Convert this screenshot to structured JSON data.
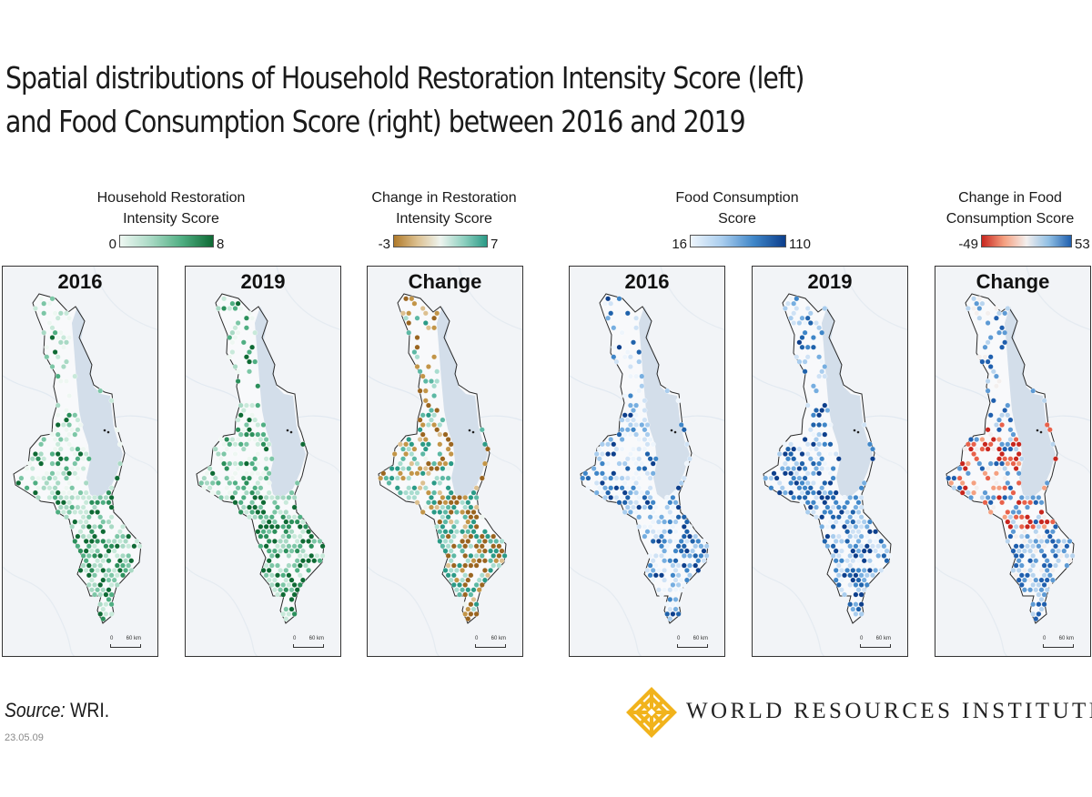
{
  "title_lines": [
    "Spatial distributions of Household Restoration Intensity Score (left)",
    "and Food Consumption Score (right) between 2016 and 2019"
  ],
  "legends": [
    {
      "title_lines": [
        "Household Restoration",
        "Intensity Score"
      ],
      "min": "0",
      "max": "8",
      "colors": [
        "#eef7f2",
        "#a8d9c4",
        "#4fae82",
        "#0e6a34"
      ]
    },
    {
      "title_lines": [
        "Change in Restoration",
        "Intensity Score"
      ],
      "min": "-3",
      "max": "7",
      "colors": [
        "#b07a2a",
        "#dcc090",
        "#eef4ef",
        "#8fd0c0",
        "#2a9a86"
      ]
    },
    {
      "title_lines": [
        "Food Consumption",
        "Score"
      ],
      "min": "16",
      "max": "110",
      "colors": [
        "#eef5fc",
        "#a9cdee",
        "#3f86c8",
        "#0d3f8c"
      ]
    },
    {
      "title_lines": [
        "Change in Food",
        "Consumption Score"
      ],
      "min": "-49",
      "max": "53",
      "colors": [
        "#c8261e",
        "#f4a080",
        "#f3efee",
        "#90bfe4",
        "#1f5fae"
      ]
    }
  ],
  "panels": [
    {
      "label": "2016",
      "palette": "rest",
      "seed": 11
    },
    {
      "label": "2019",
      "palette": "rest",
      "seed": 23
    },
    {
      "label": "Change",
      "palette": "restchange",
      "seed": 37
    },
    {
      "label": "2016",
      "palette": "food",
      "seed": 41
    },
    {
      "label": "2019",
      "palette": "food",
      "seed": 53
    },
    {
      "label": "Change",
      "palette": "foodchange",
      "seed": 67
    }
  ],
  "scale_bar": {
    "ticks": [
      "0",
      "60 km"
    ]
  },
  "source_label": "Source:",
  "source_text": " WRI.",
  "date": "23.05.09",
  "logo": {
    "name": "WORLD RESOURCES INSTITUTE",
    "icon": "wri-knot-icon",
    "color": "#f1b31c"
  }
}
